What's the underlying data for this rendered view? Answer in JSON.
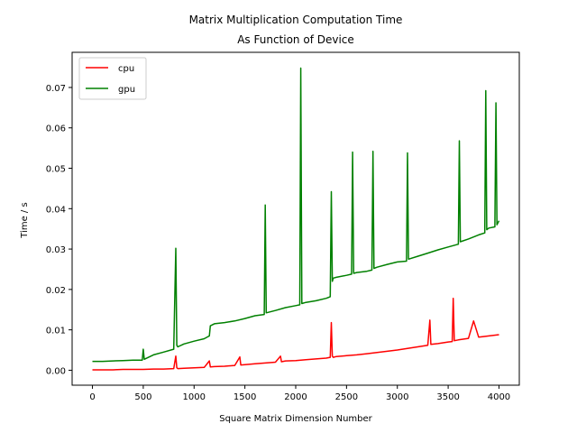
{
  "chart_data": {
    "type": "line",
    "title_line1": "Matrix Multiplication Computation Time",
    "title_line2": "As Function of Device",
    "xlabel": "Square Matrix Dimension Number",
    "ylabel": "Time / s",
    "xlim": [
      -200,
      4200
    ],
    "ylim": [
      -0.0037,
      0.0787
    ],
    "xticks": [
      0,
      500,
      1000,
      1500,
      2000,
      2500,
      3000,
      3500,
      4000
    ],
    "yticks": [
      0.0,
      0.01,
      0.02,
      0.03,
      0.04,
      0.05,
      0.06,
      0.07
    ],
    "ytick_labels": [
      "0.00",
      "0.01",
      "0.02",
      "0.03",
      "0.04",
      "0.05",
      "0.06",
      "0.07"
    ],
    "legend_position": "upper-left",
    "series": [
      {
        "name": "cpu",
        "color": "#ff0000",
        "x": [
          0,
          100,
          200,
          300,
          400,
          500,
          600,
          700,
          800,
          820,
          830,
          840,
          900,
          1000,
          1100,
          1150,
          1160,
          1200,
          1300,
          1400,
          1450,
          1460,
          1500,
          1600,
          1700,
          1800,
          1850,
          1860,
          1900,
          2000,
          2100,
          2200,
          2300,
          2340,
          2350,
          2360,
          2370,
          2400,
          2500,
          2600,
          2700,
          2800,
          2900,
          3000,
          3100,
          3200,
          3300,
          3320,
          3330,
          3400,
          3500,
          3540,
          3550,
          3560,
          3600,
          3700,
          3750,
          3800,
          3900,
          4000
        ],
        "y": [
          0.0001,
          0.0001,
          0.0001,
          0.0002,
          0.0002,
          0.0002,
          0.0003,
          0.0003,
          0.0004,
          0.0035,
          0.0006,
          0.0004,
          0.0005,
          0.0006,
          0.0007,
          0.0023,
          0.0008,
          0.0009,
          0.001,
          0.0012,
          0.0033,
          0.0013,
          0.0014,
          0.0016,
          0.0018,
          0.002,
          0.0035,
          0.0021,
          0.0023,
          0.0024,
          0.0026,
          0.0028,
          0.003,
          0.0032,
          0.0118,
          0.0035,
          0.0032,
          0.0034,
          0.0036,
          0.0038,
          0.0041,
          0.0044,
          0.0047,
          0.005,
          0.0054,
          0.0058,
          0.0062,
          0.0124,
          0.0064,
          0.0066,
          0.007,
          0.0071,
          0.0178,
          0.0073,
          0.0075,
          0.0079,
          0.0122,
          0.0082,
          0.0085,
          0.0088
        ]
      },
      {
        "name": "gpu",
        "color": "#008000",
        "x": [
          0,
          100,
          200,
          300,
          400,
          490,
          500,
          510,
          600,
          700,
          800,
          820,
          830,
          840,
          900,
          1000,
          1100,
          1150,
          1160,
          1200,
          1300,
          1400,
          1500,
          1600,
          1690,
          1700,
          1710,
          1800,
          1900,
          2000,
          2040,
          2050,
          2060,
          2100,
          2200,
          2300,
          2340,
          2350,
          2360,
          2370,
          2400,
          2500,
          2550,
          2560,
          2570,
          2600,
          2700,
          2750,
          2760,
          2770,
          2800,
          2900,
          3000,
          3090,
          3100,
          3110,
          3200,
          3300,
          3400,
          3500,
          3600,
          3610,
          3620,
          3700,
          3800,
          3860,
          3870,
          3880,
          3900,
          3960,
          3970,
          3980,
          4000
        ],
        "y": [
          0.0022,
          0.0022,
          0.0023,
          0.0024,
          0.0025,
          0.0025,
          0.0052,
          0.0027,
          0.0038,
          0.0045,
          0.0052,
          0.0302,
          0.0062,
          0.0058,
          0.0065,
          0.0072,
          0.0078,
          0.0085,
          0.011,
          0.0115,
          0.0118,
          0.0122,
          0.0128,
          0.0135,
          0.0138,
          0.0409,
          0.0142,
          0.0148,
          0.0155,
          0.016,
          0.0162,
          0.0748,
          0.0165,
          0.0168,
          0.0172,
          0.0178,
          0.0182,
          0.0442,
          0.022,
          0.0228,
          0.023,
          0.0235,
          0.0238,
          0.054,
          0.024,
          0.0242,
          0.0245,
          0.0248,
          0.0542,
          0.0252,
          0.0255,
          0.0262,
          0.0268,
          0.027,
          0.0538,
          0.0275,
          0.0282,
          0.029,
          0.0298,
          0.0305,
          0.0312,
          0.0568,
          0.0318,
          0.0325,
          0.0335,
          0.034,
          0.0692,
          0.0348,
          0.0352,
          0.0355,
          0.0662,
          0.036,
          0.037
        ]
      }
    ]
  }
}
